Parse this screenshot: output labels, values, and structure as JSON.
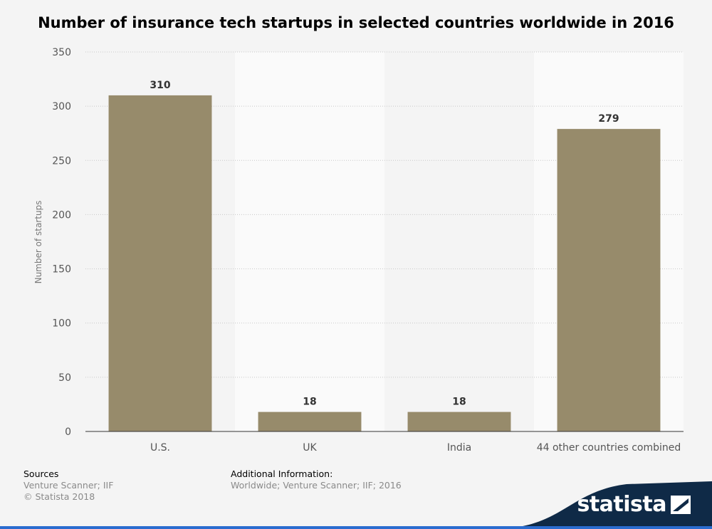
{
  "chart_data": {
    "type": "bar",
    "title": "Number of insurance tech startups in selected countries worldwide in 2016",
    "categories": [
      "U.S.",
      "UK",
      "India",
      "44 other countries combined"
    ],
    "values": [
      310,
      18,
      18,
      279
    ],
    "value_labels": [
      "310",
      "18",
      "18",
      "279"
    ],
    "xlabel": "",
    "ylabel": "Number of startups",
    "ylim": [
      0,
      350
    ],
    "yticks": [
      0,
      50,
      100,
      150,
      200,
      250,
      300,
      350
    ],
    "grid": true,
    "bar_color": "#978b6b"
  },
  "footer": {
    "sources_heading": "Sources",
    "sources_text": "Venture Scanner; IIF",
    "copyright": "© Statista 2018",
    "additional_heading": "Additional Information:",
    "additional_text": "Worldwide; Venture Scanner; IIF; 2016"
  },
  "brand": {
    "logo_text": "statista",
    "accent_color": "#0f2a47",
    "stripe_color": "#2a6ccf"
  }
}
